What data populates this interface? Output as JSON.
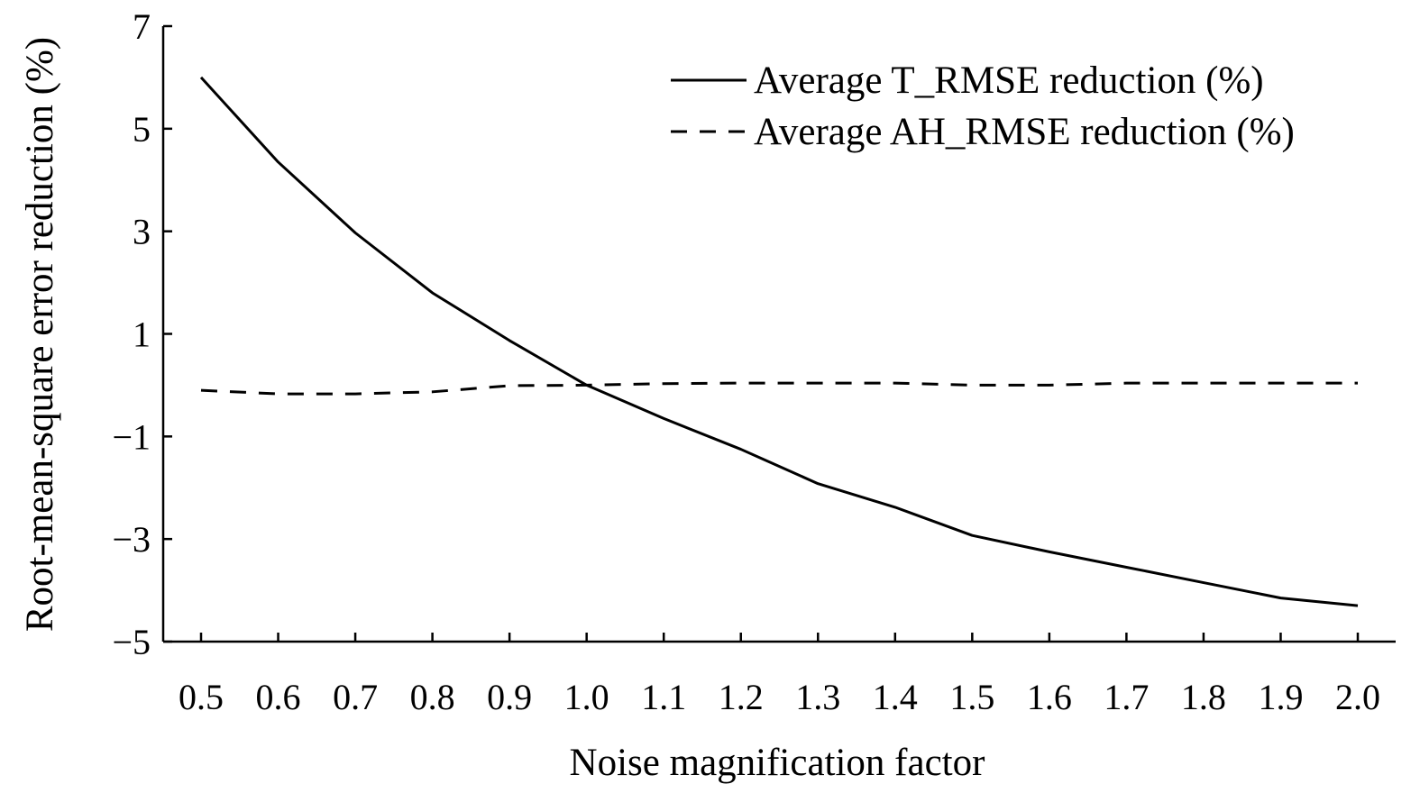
{
  "chart_data": {
    "type": "line",
    "title": "",
    "xlabel": "Noise magnification factor",
    "ylabel": "Root-mean-square error reduction (%)",
    "x": [
      0.5,
      0.6,
      0.7,
      0.8,
      0.9,
      1.0,
      1.1,
      1.2,
      1.3,
      1.4,
      1.5,
      1.6,
      1.7,
      1.8,
      1.9,
      2.0
    ],
    "x_tick_labels": [
      "0.5",
      "0.6",
      "0.7",
      "0.8",
      "0.9",
      "1.0",
      "1.1",
      "1.2",
      "1.3",
      "1.4",
      "1.5",
      "1.6",
      "1.7",
      "1.8",
      "1.9",
      "2.0"
    ],
    "y_ticks": [
      7,
      5,
      3,
      1,
      -1,
      -3,
      -5
    ],
    "y_tick_labels": [
      "7",
      "5",
      "3",
      "1",
      "−1",
      "−3",
      "−5"
    ],
    "ylim": [
      -5,
      7
    ],
    "grid": false,
    "legend_position": "top-right",
    "series": [
      {
        "name": "Average T_RMSE reduction (%)",
        "style": "solid",
        "color": "#000000",
        "values": [
          6.0,
          4.35,
          2.97,
          1.8,
          0.87,
          0.0,
          -0.65,
          -1.25,
          -1.92,
          -2.38,
          -2.93,
          -3.25,
          -3.55,
          -3.85,
          -4.15,
          -4.3
        ]
      },
      {
        "name": "Average AH_RMSE reduction (%)",
        "style": "dashed",
        "color": "#000000",
        "values": [
          -0.1,
          -0.17,
          -0.17,
          -0.13,
          -0.01,
          0.0,
          0.03,
          0.04,
          0.04,
          0.04,
          0.0,
          0.0,
          0.04,
          0.04,
          0.04,
          0.04
        ]
      }
    ]
  }
}
